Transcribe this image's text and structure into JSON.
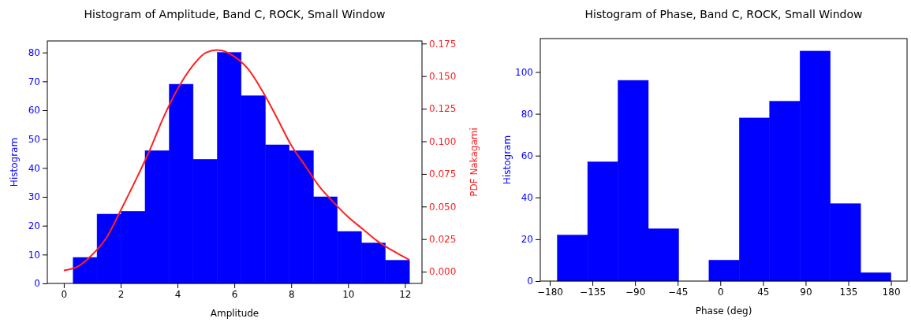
{
  "chart_data": [
    {
      "type": "histogram",
      "title": "Histogram of Amplitude, Band C, ROCK, Small Window",
      "xlabel": "Amplitude",
      "ylabel": "Histogram",
      "y2label": "PDF Nakagami",
      "bins": [
        0.33,
        1.17,
        2.02,
        2.86,
        3.71,
        4.55,
        5.4,
        6.24,
        7.09,
        7.93,
        8.78,
        9.62,
        10.47,
        11.31,
        12.16
      ],
      "series": [
        {
          "color": "#0000ff",
          "values": [
            9,
            24,
            25,
            46,
            69,
            43,
            80,
            65,
            48,
            46,
            30,
            18,
            14,
            8
          ]
        },
        {
          "type": "line",
          "axis": "y2",
          "color": "#ff2020",
          "x": [
            0,
            0.5,
            1,
            1.5,
            2,
            2.5,
            3,
            3.5,
            4,
            4.5,
            5,
            5.4,
            6,
            6.5,
            7,
            7.5,
            8,
            8.5,
            9,
            9.5,
            10,
            10.5,
            11,
            11.5,
            12.16
          ],
          "values": [
            0.001,
            0.004,
            0.013,
            0.026,
            0.047,
            0.069,
            0.092,
            0.118,
            0.14,
            0.157,
            0.168,
            0.17,
            0.165,
            0.155,
            0.138,
            0.118,
            0.097,
            0.081,
            0.065,
            0.053,
            0.042,
            0.033,
            0.024,
            0.017,
            0.009
          ]
        }
      ],
      "xlim": [
        -0.58,
        12.6
      ],
      "xticks": [
        0,
        2,
        4,
        6,
        8,
        10,
        12
      ],
      "ylim": [
        0,
        84
      ],
      "yticks": [
        0,
        10,
        20,
        30,
        40,
        50,
        60,
        70,
        80
      ],
      "y2lim": [
        -0.009,
        0.177
      ],
      "y2ticks": [
        {
          "value": 0,
          "label": "0.000"
        },
        {
          "value": 0.025,
          "label": "0.025"
        },
        {
          "value": 0.05,
          "label": "0.050"
        },
        {
          "value": 0.075,
          "label": "0.075"
        },
        {
          "value": 0.1,
          "label": "0.100"
        },
        {
          "value": 0.125,
          "label": "0.125"
        },
        {
          "value": 0.15,
          "label": "0.150"
        },
        {
          "value": 0.175,
          "label": "0.175"
        }
      ]
    },
    {
      "type": "histogram",
      "title": "Histogram of Phase, Band C, ROCK, Small Window",
      "xlabel": "Phase (deg)",
      "ylabel": "Histogram",
      "bins": [
        -172,
        -140,
        -108,
        -76,
        -44,
        -12,
        20,
        52,
        84,
        116,
        148,
        180
      ],
      "series": [
        {
          "color": "#0000ff",
          "values": [
            22,
            57,
            96,
            25,
            0,
            10,
            78,
            86,
            110,
            37,
            4
          ]
        }
      ],
      "xlim": [
        -190,
        197
      ],
      "xticks": [
        {
          "value": -180,
          "label": "−180"
        },
        {
          "value": -135,
          "label": "−135"
        },
        {
          "value": -90,
          "label": "−90"
        },
        {
          "value": -45,
          "label": "−45"
        },
        0,
        45,
        90,
        135,
        180
      ],
      "ylim": [
        0,
        116
      ],
      "yticks": [
        0,
        20,
        40,
        60,
        80,
        100
      ]
    }
  ]
}
